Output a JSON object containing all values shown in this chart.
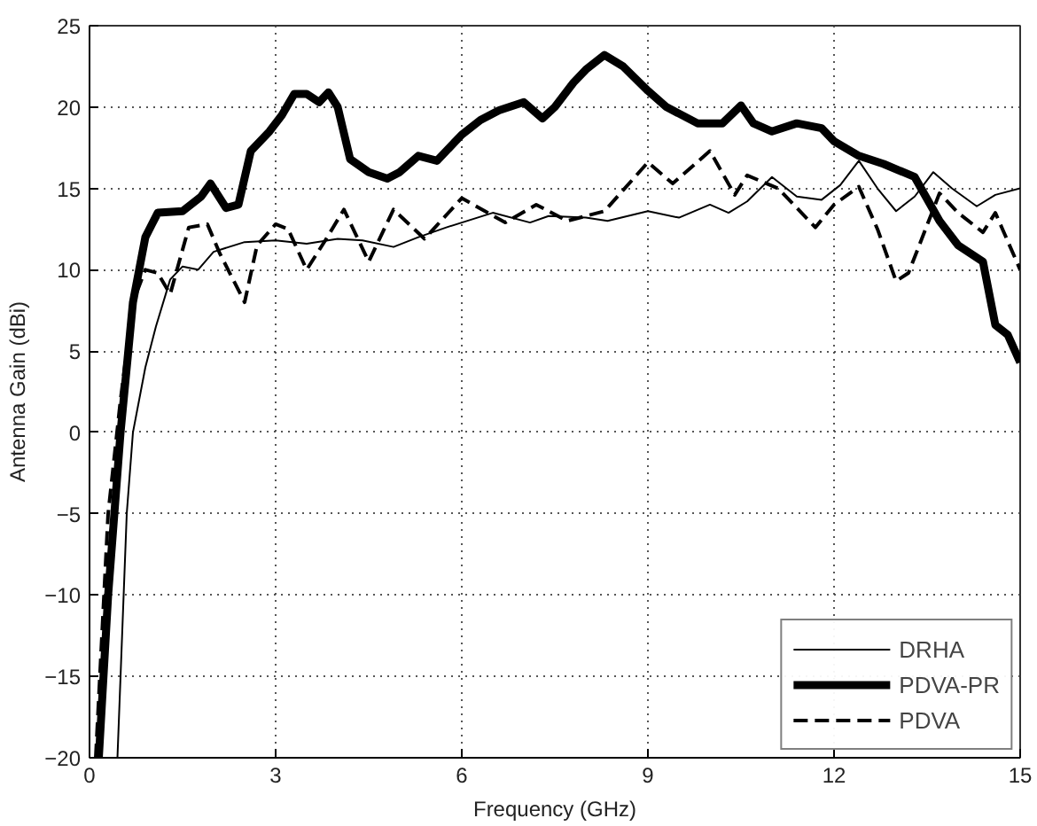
{
  "chart_data": {
    "type": "line",
    "xlabel": "Frequency (GHz)",
    "ylabel": "Antenna Gain (dBi)",
    "xlim": [
      0,
      15
    ],
    "ylim": [
      -20,
      25
    ],
    "xticks": [
      0,
      3,
      6,
      9,
      12,
      15
    ],
    "yticks": [
      -20,
      -15,
      -10,
      -5,
      0,
      5,
      10,
      15,
      20,
      25
    ],
    "grid": true,
    "legend": "bottom right",
    "marker": "none",
    "series": [
      {
        "name": "DRHA",
        "color": "#000000",
        "line_style": "solid",
        "x": [
          0.45,
          0.6,
          0.7,
          0.9,
          1.07,
          1.3,
          1.5,
          1.75,
          2.0,
          2.5,
          3.0,
          3.5,
          4.0,
          4.4,
          4.9,
          5.3,
          5.75,
          6.5,
          7.1,
          7.4,
          8.0,
          8.35,
          9.0,
          9.5,
          10.0,
          10.3,
          10.6,
          11.0,
          11.4,
          11.8,
          12.1,
          12.4,
          12.7,
          13.0,
          13.3,
          13.6,
          13.9,
          14.3,
          14.6,
          15.0
        ],
        "values": [
          -20,
          -5,
          0,
          4,
          6.5,
          9.4,
          10.2,
          10.0,
          11.1,
          11.7,
          11.8,
          11.6,
          11.9,
          11.8,
          11.4,
          12.0,
          12.6,
          13.5,
          12.9,
          13.3,
          13.2,
          13.0,
          13.6,
          13.2,
          14.0,
          13.5,
          14.2,
          15.7,
          14.5,
          14.3,
          15.2,
          16.7,
          15.0,
          13.6,
          14.5,
          16.0,
          15.0,
          13.9,
          14.6,
          15.0
        ]
      },
      {
        "name": "PDVA-PR",
        "color": "#000000",
        "line_style": "solid",
        "x": [
          0.15,
          0.3,
          0.5,
          0.7,
          0.9,
          1.1,
          1.5,
          1.8,
          1.95,
          2.2,
          2.4,
          2.6,
          2.9,
          3.1,
          3.3,
          3.5,
          3.7,
          3.85,
          4.0,
          4.2,
          4.5,
          4.8,
          5.0,
          5.3,
          5.6,
          6.0,
          6.3,
          6.6,
          7.0,
          7.3,
          7.5,
          7.8,
          8.0,
          8.3,
          8.6,
          9.0,
          9.3,
          9.8,
          10.2,
          10.5,
          10.7,
          11.0,
          11.4,
          11.8,
          12.0,
          12.4,
          12.8,
          13.3,
          13.7,
          14.0,
          14.4,
          14.6,
          14.8,
          15.0
        ],
        "values": [
          -20,
          -10,
          0,
          8,
          12,
          13.5,
          13.6,
          14.5,
          15.3,
          13.8,
          14.0,
          17.3,
          18.5,
          19.5,
          20.8,
          20.8,
          20.3,
          20.9,
          20.0,
          16.8,
          16.0,
          15.6,
          16.0,
          17.0,
          16.7,
          18.3,
          19.2,
          19.8,
          20.3,
          19.3,
          20.0,
          21.5,
          22.3,
          23.2,
          22.5,
          21.0,
          20.0,
          19.0,
          19.0,
          20.1,
          19.0,
          18.5,
          19.0,
          18.7,
          17.9,
          17.0,
          16.5,
          15.7,
          13.0,
          11.5,
          10.5,
          6.6,
          6.0,
          4.3
        ]
      },
      {
        "name": "PDVA",
        "color": "#000000",
        "line_style": "dashed",
        "x": [
          0.1,
          0.3,
          0.5,
          0.7,
          0.9,
          1.1,
          1.3,
          1.6,
          1.9,
          2.1,
          2.5,
          2.7,
          3.0,
          3.2,
          3.5,
          3.8,
          4.1,
          4.5,
          4.9,
          5.4,
          6.0,
          6.7,
          7.2,
          7.7,
          8.3,
          9.0,
          9.4,
          10.0,
          10.4,
          10.6,
          11.1,
          11.7,
          12.0,
          12.4,
          12.7,
          13.0,
          13.2,
          13.7,
          14.0,
          14.4,
          14.6,
          15.0
        ],
        "values": [
          -20,
          -5,
          2,
          8,
          10,
          9.8,
          8.5,
          12.6,
          12.8,
          11.0,
          8.0,
          11.5,
          12.8,
          12.5,
          10.0,
          11.8,
          13.7,
          10.5,
          13.7,
          11.9,
          14.4,
          12.9,
          14.0,
          13.0,
          13.6,
          16.6,
          15.3,
          17.3,
          14.6,
          15.8,
          15.0,
          12.6,
          14.0,
          15.1,
          12.5,
          9.3,
          9.8,
          14.7,
          13.5,
          12.3,
          13.5,
          10.0
        ]
      }
    ]
  }
}
